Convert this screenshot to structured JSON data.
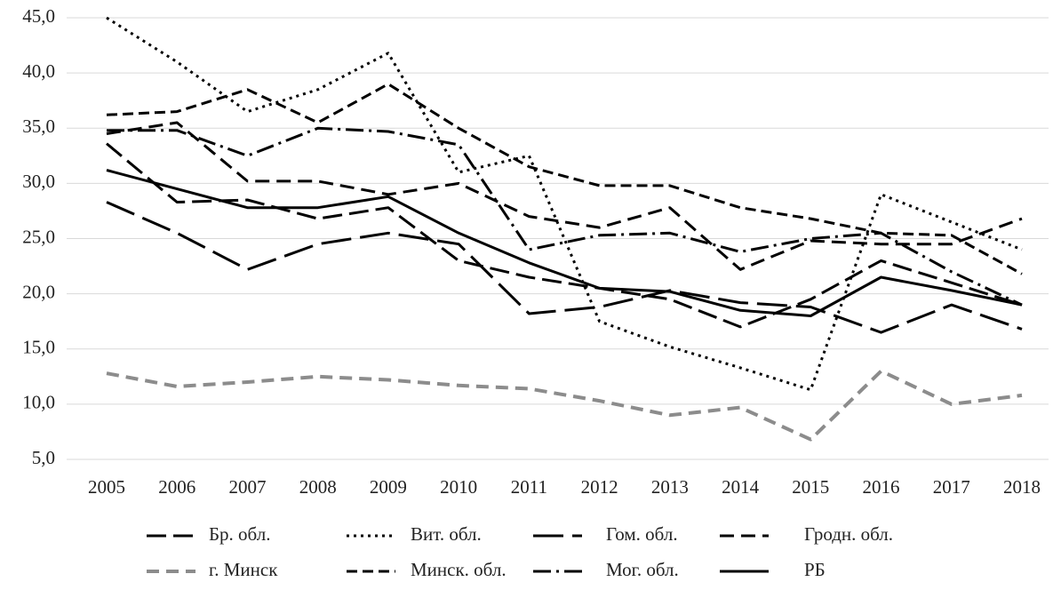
{
  "chart_data": {
    "type": "line",
    "categories": [
      "2005",
      "2006",
      "2007",
      "2008",
      "2009",
      "2010",
      "2011",
      "2012",
      "2013",
      "2014",
      "2015",
      "2016",
      "2017",
      "2018"
    ],
    "ylim": [
      5,
      45
    ],
    "yticks": [
      {
        "value": 5,
        "label": "5,0"
      },
      {
        "value": 10,
        "label": "10,0"
      },
      {
        "value": 15,
        "label": "15,0"
      },
      {
        "value": 20,
        "label": "20,0"
      },
      {
        "value": 25,
        "label": "25,0"
      },
      {
        "value": 30,
        "label": "30,0"
      },
      {
        "value": 35,
        "label": "35,0"
      },
      {
        "value": 40,
        "label": "40,0"
      },
      {
        "value": 45,
        "label": "45,0"
      }
    ],
    "grid": true,
    "series": [
      {
        "name": "Бр. обл.",
        "color": "#000000",
        "values": [
          33.6,
          28.3,
          28.5,
          26.8,
          27.8,
          23.0,
          21.5,
          20.5,
          19.5,
          17.0,
          19.5,
          23.0,
          21.0,
          19.0
        ]
      },
      {
        "name": "Вит. обл.",
        "color": "#000000",
        "values": [
          45.0,
          41.0,
          36.5,
          38.5,
          41.8,
          31.0,
          32.5,
          17.5,
          15.2,
          13.3,
          11.3,
          29.0,
          26.5,
          24.0
        ]
      },
      {
        "name": "Гом. обл.",
        "color": "#000000",
        "values": [
          28.3,
          25.5,
          22.2,
          24.5,
          25.5,
          24.5,
          18.2,
          18.8,
          20.3,
          19.2,
          18.8,
          16.5,
          19.0,
          16.8
        ]
      },
      {
        "name": "Гродн. обл.",
        "color": "#000000",
        "values": [
          34.5,
          35.5,
          30.2,
          30.2,
          29.0,
          30.0,
          27.0,
          26.0,
          27.8,
          22.2,
          24.8,
          24.5,
          24.5,
          26.8
        ]
      },
      {
        "name": "г. Минск",
        "color": "#8c8c8c",
        "values": [
          12.8,
          11.6,
          12.0,
          12.5,
          12.2,
          11.7,
          11.4,
          10.3,
          9.0,
          9.7,
          6.8,
          13.0,
          10.0,
          10.8
        ]
      },
      {
        "name": "Минск. обл.",
        "color": "#000000",
        "values": [
          36.2,
          36.5,
          38.5,
          35.5,
          39.0,
          35.0,
          31.5,
          29.8,
          29.8,
          27.8,
          26.8,
          25.5,
          25.3,
          21.8
        ]
      },
      {
        "name": "Мог. обл.",
        "color": "#000000",
        "values": [
          34.8,
          34.8,
          32.5,
          35.0,
          34.7,
          33.5,
          24.0,
          25.3,
          25.5,
          23.8,
          25.0,
          25.5,
          22.0,
          19.0
        ]
      },
      {
        "name": "РБ",
        "color": "#000000",
        "values": [
          31.2,
          29.5,
          27.8,
          27.8,
          28.8,
          25.5,
          22.8,
          20.5,
          20.2,
          18.5,
          18.0,
          21.5,
          20.3,
          19.0
        ]
      }
    ]
  }
}
